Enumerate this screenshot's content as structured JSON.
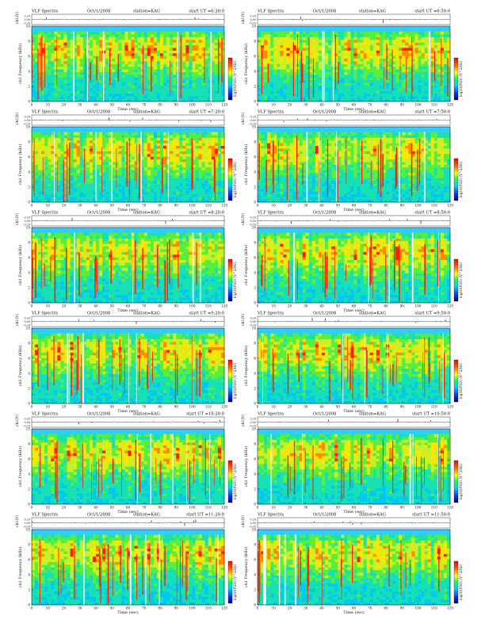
{
  "common": {
    "wave_ylabel": "ch1(V)",
    "freq_ylabel": "ch1\nFrequency (kHz)",
    "xlabel": "Time (sec)",
    "cbar_label": "log10(PSD) (V^2/Hz)"
  },
  "chart_data": [
    {
      "type": "heatmap",
      "title": "VLF Spectra",
      "date": "Oct/1/2008",
      "station": "station=KAG",
      "start": "start UT =6:20:0",
      "xlim": [
        0,
        120
      ],
      "xticks": [
        0,
        10,
        20,
        30,
        40,
        50,
        60,
        70,
        80,
        90,
        100,
        110,
        120
      ],
      "ylim_freq": [
        0,
        10
      ],
      "yticks_freq": [
        0,
        2,
        4,
        6,
        8,
        10
      ],
      "wave_yticks": [
        "0.20",
        "0.00",
        "-0.20"
      ]
    },
    {
      "type": "heatmap",
      "title": "VLF Spectra",
      "date": "Oct/1/2008",
      "station": "station=KAG",
      "start": "start UT =6:50:0",
      "xlim": [
        0,
        120
      ],
      "xticks": [
        0,
        10,
        20,
        30,
        40,
        50,
        60,
        70,
        80,
        90,
        100,
        110,
        120
      ],
      "ylim_freq": [
        0,
        10
      ],
      "yticks_freq": [
        0,
        2,
        4,
        6,
        8,
        10
      ],
      "wave_yticks": [
        "0.20",
        "0.00",
        "-0.20"
      ]
    },
    {
      "type": "heatmap",
      "title": "VLF Spectra",
      "date": "Oct/1/2008",
      "station": "station=KAG",
      "start": "start UT =7:20:0",
      "xlim": [
        0,
        120
      ],
      "xticks": [
        0,
        10,
        20,
        30,
        40,
        50,
        60,
        70,
        80,
        90,
        100,
        110,
        120
      ],
      "ylim_freq": [
        0,
        10
      ],
      "yticks_freq": [
        0,
        2,
        4,
        6,
        8,
        10
      ],
      "wave_yticks": [
        "0.20",
        "0.00",
        "-0.20"
      ]
    },
    {
      "type": "heatmap",
      "title": "VLF Spectra",
      "date": "Oct/1/2008",
      "station": "station=KAG",
      "start": "start UT =7:50:0",
      "xlim": [
        0,
        120
      ],
      "xticks": [
        0,
        10,
        20,
        30,
        40,
        50,
        60,
        70,
        80,
        90,
        100,
        110,
        120
      ],
      "ylim_freq": [
        0,
        10
      ],
      "yticks_freq": [
        0,
        2,
        4,
        6,
        8,
        10
      ],
      "wave_yticks": [
        "0.20",
        "0.00",
        "-0.20"
      ]
    },
    {
      "type": "heatmap",
      "title": "VLF Spectra",
      "date": "Oct/1/2008",
      "station": "station=KAG",
      "start": "start UT =8:20:0",
      "xlim": [
        0,
        120
      ],
      "xticks": [
        0,
        10,
        20,
        30,
        40,
        50,
        60,
        70,
        80,
        90,
        100,
        110,
        120
      ],
      "ylim_freq": [
        0,
        10
      ],
      "yticks_freq": [
        0,
        2,
        4,
        6,
        8,
        10
      ],
      "wave_yticks": [
        "0.20",
        "0.00",
        "-0.20"
      ]
    },
    {
      "type": "heatmap",
      "title": "VLF Spectra",
      "date": "Oct/1/2008",
      "station": "station=KAG",
      "start": "start UT =8:50:0",
      "xlim": [
        0,
        120
      ],
      "xticks": [
        0,
        10,
        20,
        30,
        40,
        50,
        60,
        70,
        80,
        90,
        100,
        110,
        120
      ],
      "ylim_freq": [
        0,
        10
      ],
      "yticks_freq": [
        0,
        2,
        4,
        6,
        8,
        10
      ],
      "wave_yticks": [
        "0.20",
        "0.00",
        "-0.20"
      ]
    },
    {
      "type": "heatmap",
      "title": "VLF Spectra",
      "date": "Oct/1/2008",
      "station": "station=KAG",
      "start": "start UT =9:20:0",
      "xlim": [
        0,
        120
      ],
      "xticks": [
        0,
        10,
        20,
        30,
        40,
        50,
        60,
        70,
        80,
        90,
        100,
        110,
        120
      ],
      "ylim_freq": [
        0,
        10
      ],
      "yticks_freq": [
        0,
        2,
        4,
        6,
        8,
        10
      ],
      "wave_yticks": [
        "0.20",
        "0.00",
        "-0.20"
      ]
    },
    {
      "type": "heatmap",
      "title": "VLF Spectra",
      "date": "Oct/1/2008",
      "station": "station=KAG",
      "start": "start UT =9:50:0",
      "xlim": [
        0,
        120
      ],
      "xticks": [
        0,
        10,
        20,
        30,
        40,
        50,
        60,
        70,
        80,
        90,
        100,
        110,
        120
      ],
      "ylim_freq": [
        0,
        10
      ],
      "yticks_freq": [
        0,
        2,
        4,
        6,
        8,
        10
      ],
      "wave_yticks": [
        "0.20",
        "0.00",
        "-0.20"
      ]
    },
    {
      "type": "heatmap",
      "title": "VLF Spectra",
      "date": "Oct/1/2008",
      "station": "station=KAG",
      "start": "start UT =10:20:0",
      "xlim": [
        0,
        120
      ],
      "xticks": [
        0,
        10,
        20,
        30,
        40,
        50,
        60,
        70,
        80,
        90,
        100,
        110,
        120
      ],
      "ylim_freq": [
        0,
        10
      ],
      "yticks_freq": [
        0,
        2,
        4,
        6,
        8,
        10
      ],
      "wave_yticks": [
        "0.20",
        "0.00",
        "-0.20"
      ]
    },
    {
      "type": "heatmap",
      "title": "VLF Spectra",
      "date": "Oct/1/2008",
      "station": "station=KAG",
      "start": "start UT =10:50:0",
      "xlim": [
        0,
        120
      ],
      "xticks": [
        0,
        10,
        20,
        30,
        40,
        50,
        60,
        70,
        80,
        90,
        100,
        110,
        120
      ],
      "ylim_freq": [
        0,
        10
      ],
      "yticks_freq": [
        0,
        2,
        4,
        6,
        8,
        10
      ],
      "wave_yticks": [
        "0.20",
        "0.00",
        "-0.20"
      ]
    },
    {
      "type": "heatmap",
      "title": "VLF Spectra",
      "date": "Oct/1/2008",
      "station": "station=KAG",
      "start": "start UT =11:20:0",
      "xlim": [
        0,
        120
      ],
      "xticks": [
        0,
        10,
        20,
        30,
        40,
        50,
        60,
        70,
        80,
        90,
        100,
        110,
        120
      ],
      "ylim_freq": [
        0,
        10
      ],
      "yticks_freq": [
        0,
        2,
        4,
        6,
        8,
        10
      ],
      "wave_yticks": [
        "0.20",
        "0.00",
        "-0.20"
      ]
    },
    {
      "type": "heatmap",
      "title": "VLF Spectra",
      "date": "Oct/1/2008",
      "station": "station=KAG",
      "start": "start UT =11:50:0",
      "xlim": [
        0,
        120
      ],
      "xticks": [
        0,
        10,
        20,
        30,
        40,
        50,
        60,
        70,
        80,
        90,
        100,
        110,
        120
      ],
      "ylim_freq": [
        0,
        10
      ],
      "yticks_freq": [
        0,
        2,
        4,
        6,
        8,
        10
      ],
      "wave_yticks": [
        "0.20",
        "0.00",
        "-0.20"
      ]
    }
  ]
}
